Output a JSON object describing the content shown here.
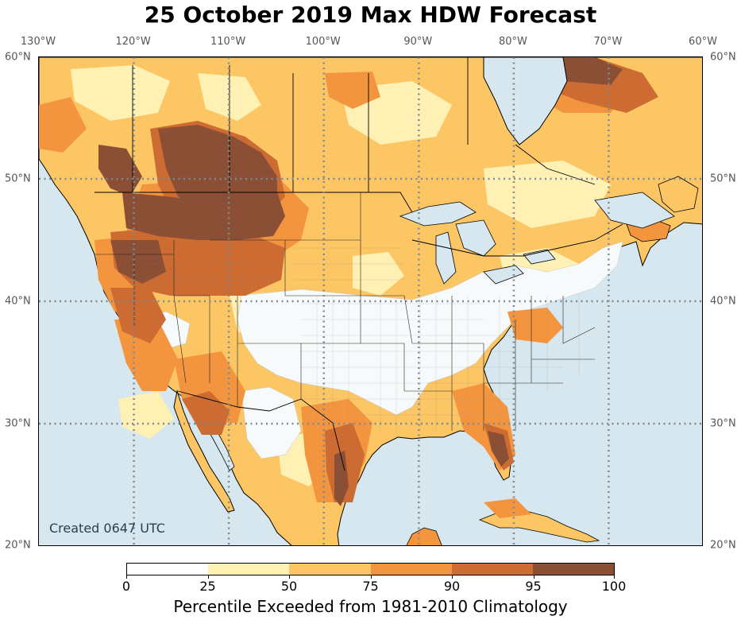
{
  "title": "25 October 2019 Max HDW Forecast",
  "created_text": "Created 0647 UTC",
  "lon_ticks": [
    "130°W",
    "120°W",
    "110°W",
    "100°W",
    "90°W",
    "80°W",
    "70°W",
    "60°W"
  ],
  "lat_ticks": [
    "60°N",
    "50°N",
    "40°N",
    "30°N",
    "20°N"
  ],
  "colorbar": {
    "label": "Percentile Exceeded from 1981-2010 Climatology",
    "ticks": [
      "0",
      "25",
      "50",
      "75",
      "90",
      "95",
      "100"
    ],
    "bins": [
      {
        "range": "0-25",
        "color": "#ffffff"
      },
      {
        "range": "25-50",
        "color": "#fff0b3"
      },
      {
        "range": "50-75",
        "color": "#fdc664"
      },
      {
        "range": "75-90",
        "color": "#f3953f"
      },
      {
        "range": "90-95",
        "color": "#cc6b32"
      },
      {
        "range": "95-100",
        "color": "#8b4f36"
      }
    ]
  },
  "colors": {
    "ocean": "#d6e7ef",
    "land_low": "#f7fafb",
    "gridline": "#7f8a90"
  },
  "extent": {
    "lon_min": -130,
    "lon_max": -60,
    "lat_min": 20,
    "lat_max": 60
  }
}
